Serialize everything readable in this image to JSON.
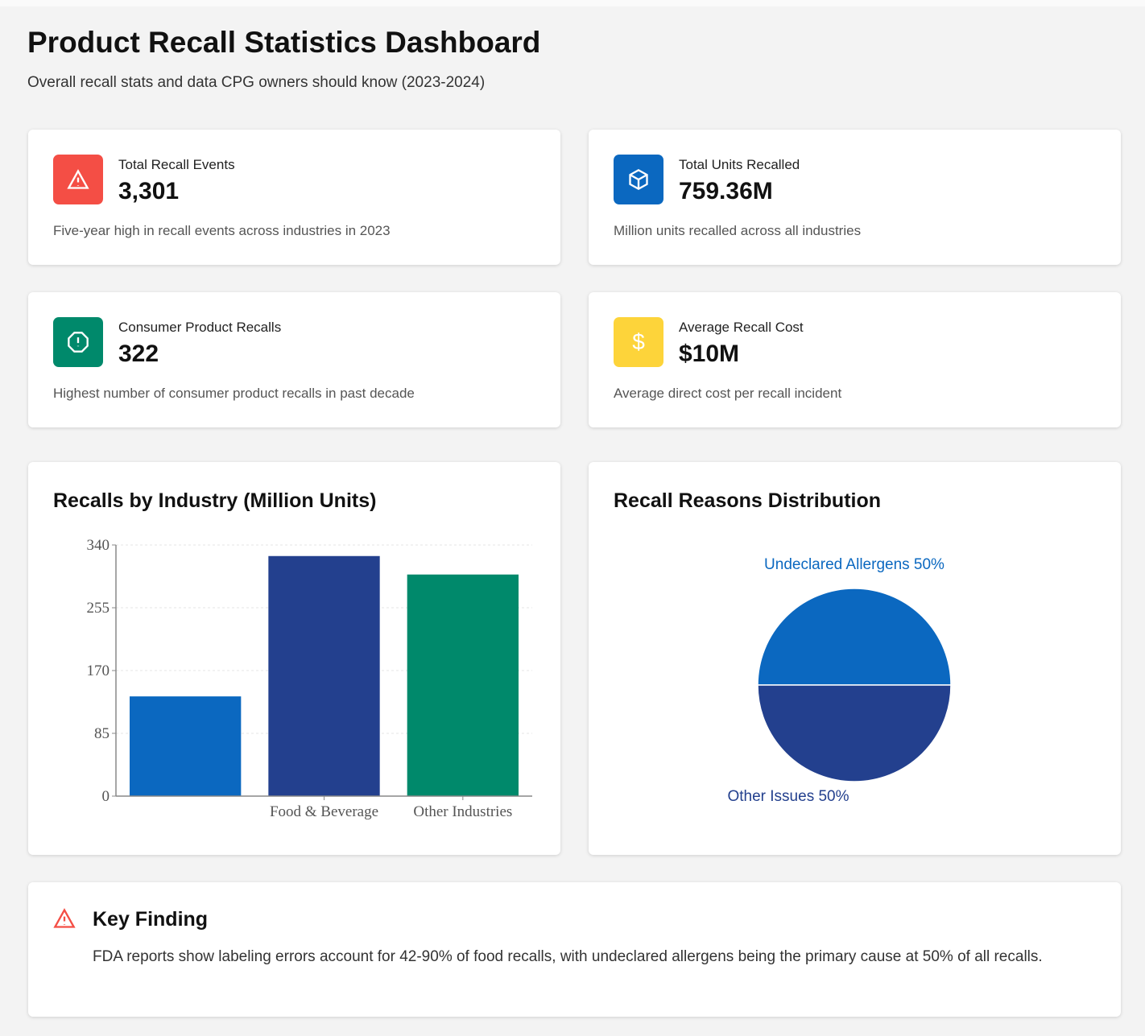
{
  "header": {
    "title": "Product Recall Statistics Dashboard",
    "subtitle": "Overall recall stats and data CPG owners should know (2023-2024)"
  },
  "stats": [
    {
      "icon": "warning-triangle-icon",
      "color": "#f44e45",
      "label": "Total Recall Events",
      "value": "3,301",
      "description": "Five-year high in recall events across industries in 2023"
    },
    {
      "icon": "package-icon",
      "color": "#0b68c0",
      "label": "Total Units Recalled",
      "value": "759.36M",
      "description": "Million units recalled across all industries"
    },
    {
      "icon": "alert-octagon-icon",
      "color": "#00896b",
      "label": "Consumer Product Recalls",
      "value": "322",
      "description": "Highest number of consumer product recalls in past decade"
    },
    {
      "icon": "dollar-icon",
      "color": "#fdd43a",
      "label": "Average Recall Cost",
      "value": "$10M",
      "description": "Average direct cost per recall incident"
    }
  ],
  "chart_data": [
    {
      "type": "bar",
      "title": "Recalls by Industry (Million Units)",
      "categories": [
        "",
        "Food & Beverage",
        "Other Industries"
      ],
      "values": [
        135,
        325,
        300
      ],
      "colors": [
        "#0b68c0",
        "#23408e",
        "#00896b"
      ],
      "ylim": [
        0,
        340
      ],
      "yticks": [
        0,
        85,
        170,
        255,
        340
      ],
      "grid": true
    },
    {
      "type": "pie",
      "title": "Recall Reasons Distribution",
      "labels": [
        "Undeclared Allergens 50%",
        "Other Issues 50%"
      ],
      "values": [
        50,
        50
      ],
      "colors": [
        "#0b68c0",
        "#23408e"
      ]
    }
  ],
  "finding": {
    "title": "Key Finding",
    "text": "FDA reports show labeling errors account for 42-90% of food recalls, with undeclared allergens being the primary cause at 50% of all recalls.",
    "color": "#f44e45"
  }
}
